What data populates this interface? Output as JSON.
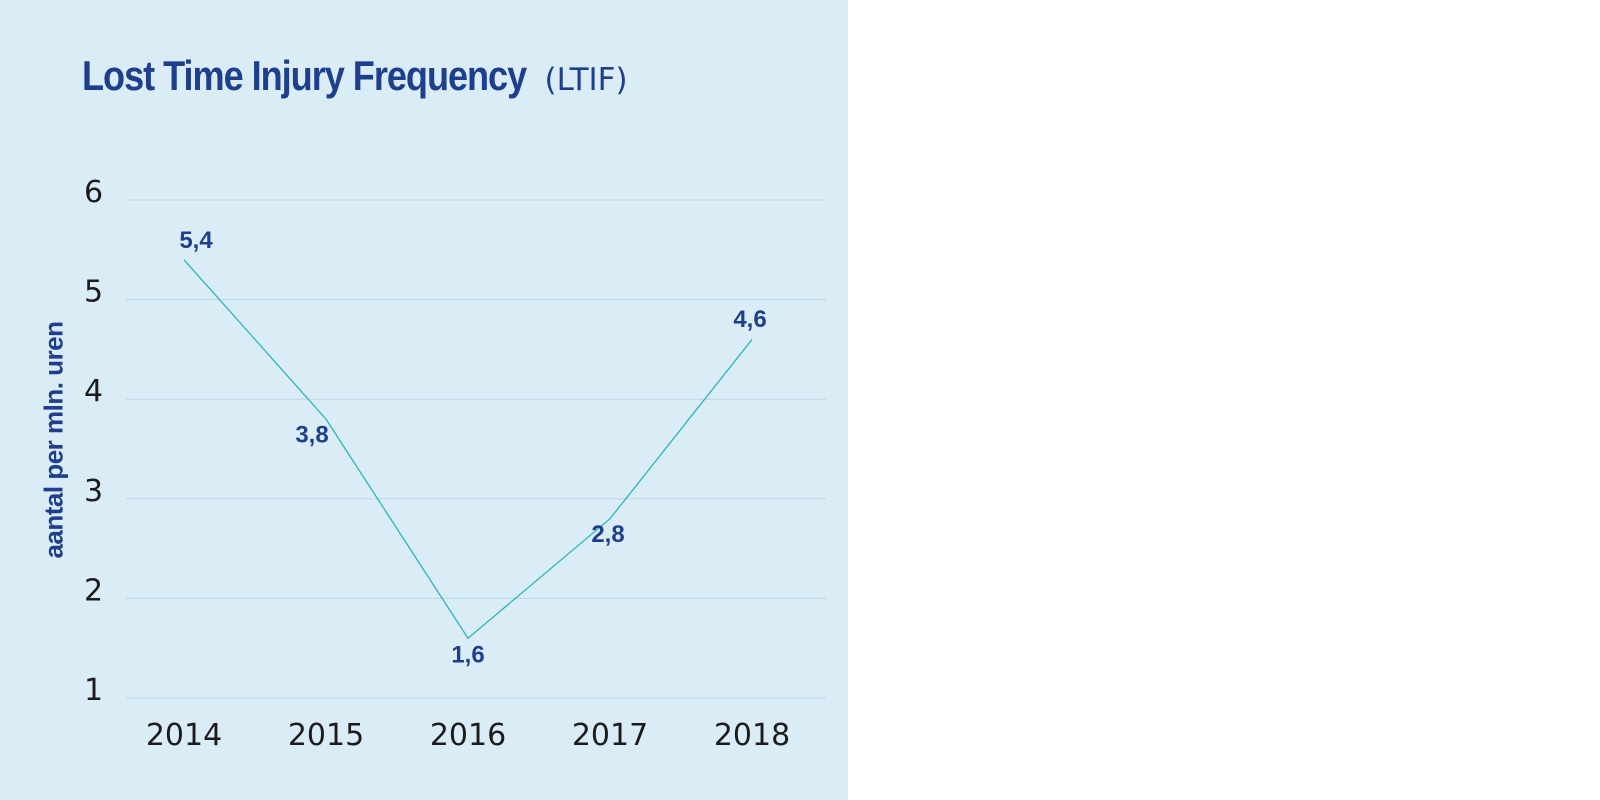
{
  "colors": {
    "panel_background": "#daedf7",
    "title": "#1f3f8d",
    "line": "#2fb3b8",
    "gridline": "#b9d6e4",
    "data_label": "#1f3f8d",
    "tick_label": "#1c1c1c"
  },
  "chart_data": {
    "type": "line",
    "title": "Lost Time Injury Frequency",
    "subtitle": "(LTIF)",
    "xlabel": "",
    "ylabel": "aantal per mln. uren",
    "categories": [
      "2014",
      "2015",
      "2016",
      "2017",
      "2018"
    ],
    "series": [
      {
        "values": [
          5.4,
          3.8,
          1.6,
          2.8,
          4.6
        ],
        "labels": [
          "5,4",
          "3,8",
          "1,6",
          "2,8",
          "4,6"
        ]
      }
    ],
    "ylim": [
      1,
      6
    ],
    "yticks": [
      1,
      2,
      3,
      4,
      5,
      6
    ],
    "grid": true,
    "legend": "none"
  }
}
